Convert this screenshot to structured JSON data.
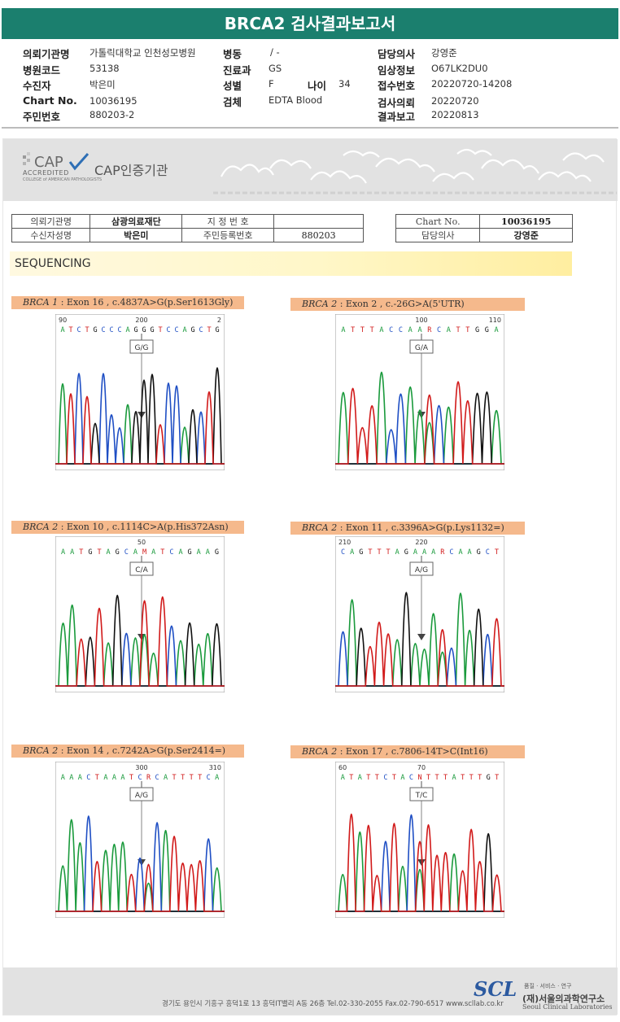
{
  "header": {
    "title": "BRCA2 검사결과보고서"
  },
  "info": {
    "institution_label": "의뢰기관명",
    "institution": "가톨릭대학교 인천성모병원",
    "hospital_code_label": "병원코드",
    "hospital_code": "53138",
    "patient_label": "수진자",
    "patient": "박은미",
    "chart_label": "Chart No.",
    "chart_no": "10036195",
    "resident_label": "주민번호",
    "resident_no": "880203-2",
    "ward_label": "병동",
    "ward": "/ -",
    "dept_label": "진료과",
    "dept": "GS",
    "sex_label": "성별",
    "sex": "F",
    "age_label": "나이",
    "age": "34",
    "specimen_label": "검체",
    "specimen": "EDTA Blood",
    "doctor_label": "담당의사",
    "doctor": "강영준",
    "clinical_label": "임상정보",
    "clinical": "O67LK2DU0",
    "receipt_label": "접수번호",
    "receipt": "20220720-14208",
    "request_label": "검사의뢰",
    "request": "20220720",
    "report_label": "결과보고",
    "report": "20220813"
  },
  "cap": {
    "logo_text": "CAP",
    "accredited": "ACCREDITED",
    "college": "COLLEGE of AMERICAN PATHOLOGISTS",
    "certified": "CAP인증기관"
  },
  "patient_table": {
    "inst_h": "의뢰기관명",
    "inst_v": "삼광의료재단",
    "name_h": "수신자성명",
    "name_v": "박은미",
    "desig_h": "지 정 번 호",
    "desig_v": "",
    "rrn_h": "주민등록번호",
    "rrn_v": "880203",
    "chart_h": "Chart No.",
    "chart_v": "10036195",
    "doc_h": "담당의사",
    "doc_v": "강영준"
  },
  "sequencing_title": "SEQUENCING",
  "variants": [
    {
      "gene": "BRCA 1",
      "desc": " : Exon 16 , c.4837A>G(p.Ser1613Gly)",
      "genotype": "G/G",
      "pos_left": "90",
      "pos_mid": "200",
      "pos_right": "2",
      "bases": "ATCTGCCCAGGGTCCAGCTG"
    },
    {
      "gene": "BRCA 2",
      "desc": " : Exon 2 , c.-26G>A(5'UTR)",
      "genotype": "G/A",
      "pos_left": "",
      "pos_mid": "100",
      "pos_right": "110",
      "bases": "ATTTACCAARCATTGGA"
    },
    {
      "gene": "BRCA 2",
      "desc": " : Exon 10 , c.1114C>A(p.His372Asn)",
      "genotype": "C/A",
      "pos_left": "",
      "pos_mid": "50",
      "pos_right": "",
      "bases": "AATGTAGCAMATCAGAAG"
    },
    {
      "gene": "BRCA 2",
      "desc": " : Exon 11 , c.3396A>G(p.Lys1132=)",
      "genotype": "A/G",
      "pos_left": "210",
      "pos_mid": "220",
      "pos_right": "",
      "bases": "CAGTTTAGAAARCAAGCT"
    },
    {
      "gene": "BRCA 2",
      "desc": " : Exon 14 , c.7242A>G(p.Ser2414=)",
      "genotype": "A/G",
      "pos_left": "",
      "pos_mid": "300",
      "pos_right": "310",
      "bases": "AAACTAAATCRCATTTTCA"
    },
    {
      "gene": "BRCA 2",
      "desc": " : Exon 17 , c.7806-14T>C(Int16)",
      "genotype": "T/C",
      "pos_left": "60",
      "pos_mid": "70",
      "pos_right": "",
      "bases": "ATATTCTACNTTTATTTGT"
    }
  ],
  "footer": {
    "address": "경기도 용인시 기흥구 흥덕1로 13 흥덕IT밸리 A동 26층  Tel.02-330-2055  Fax.02-790-6517  www.scllab.co.kr",
    "scl": "SCL",
    "slogan": "품질 · 서비스 · 연구",
    "name_ko": "(재)서울의과학연구소",
    "name_en": "Seoul Clinical Laboratories"
  }
}
